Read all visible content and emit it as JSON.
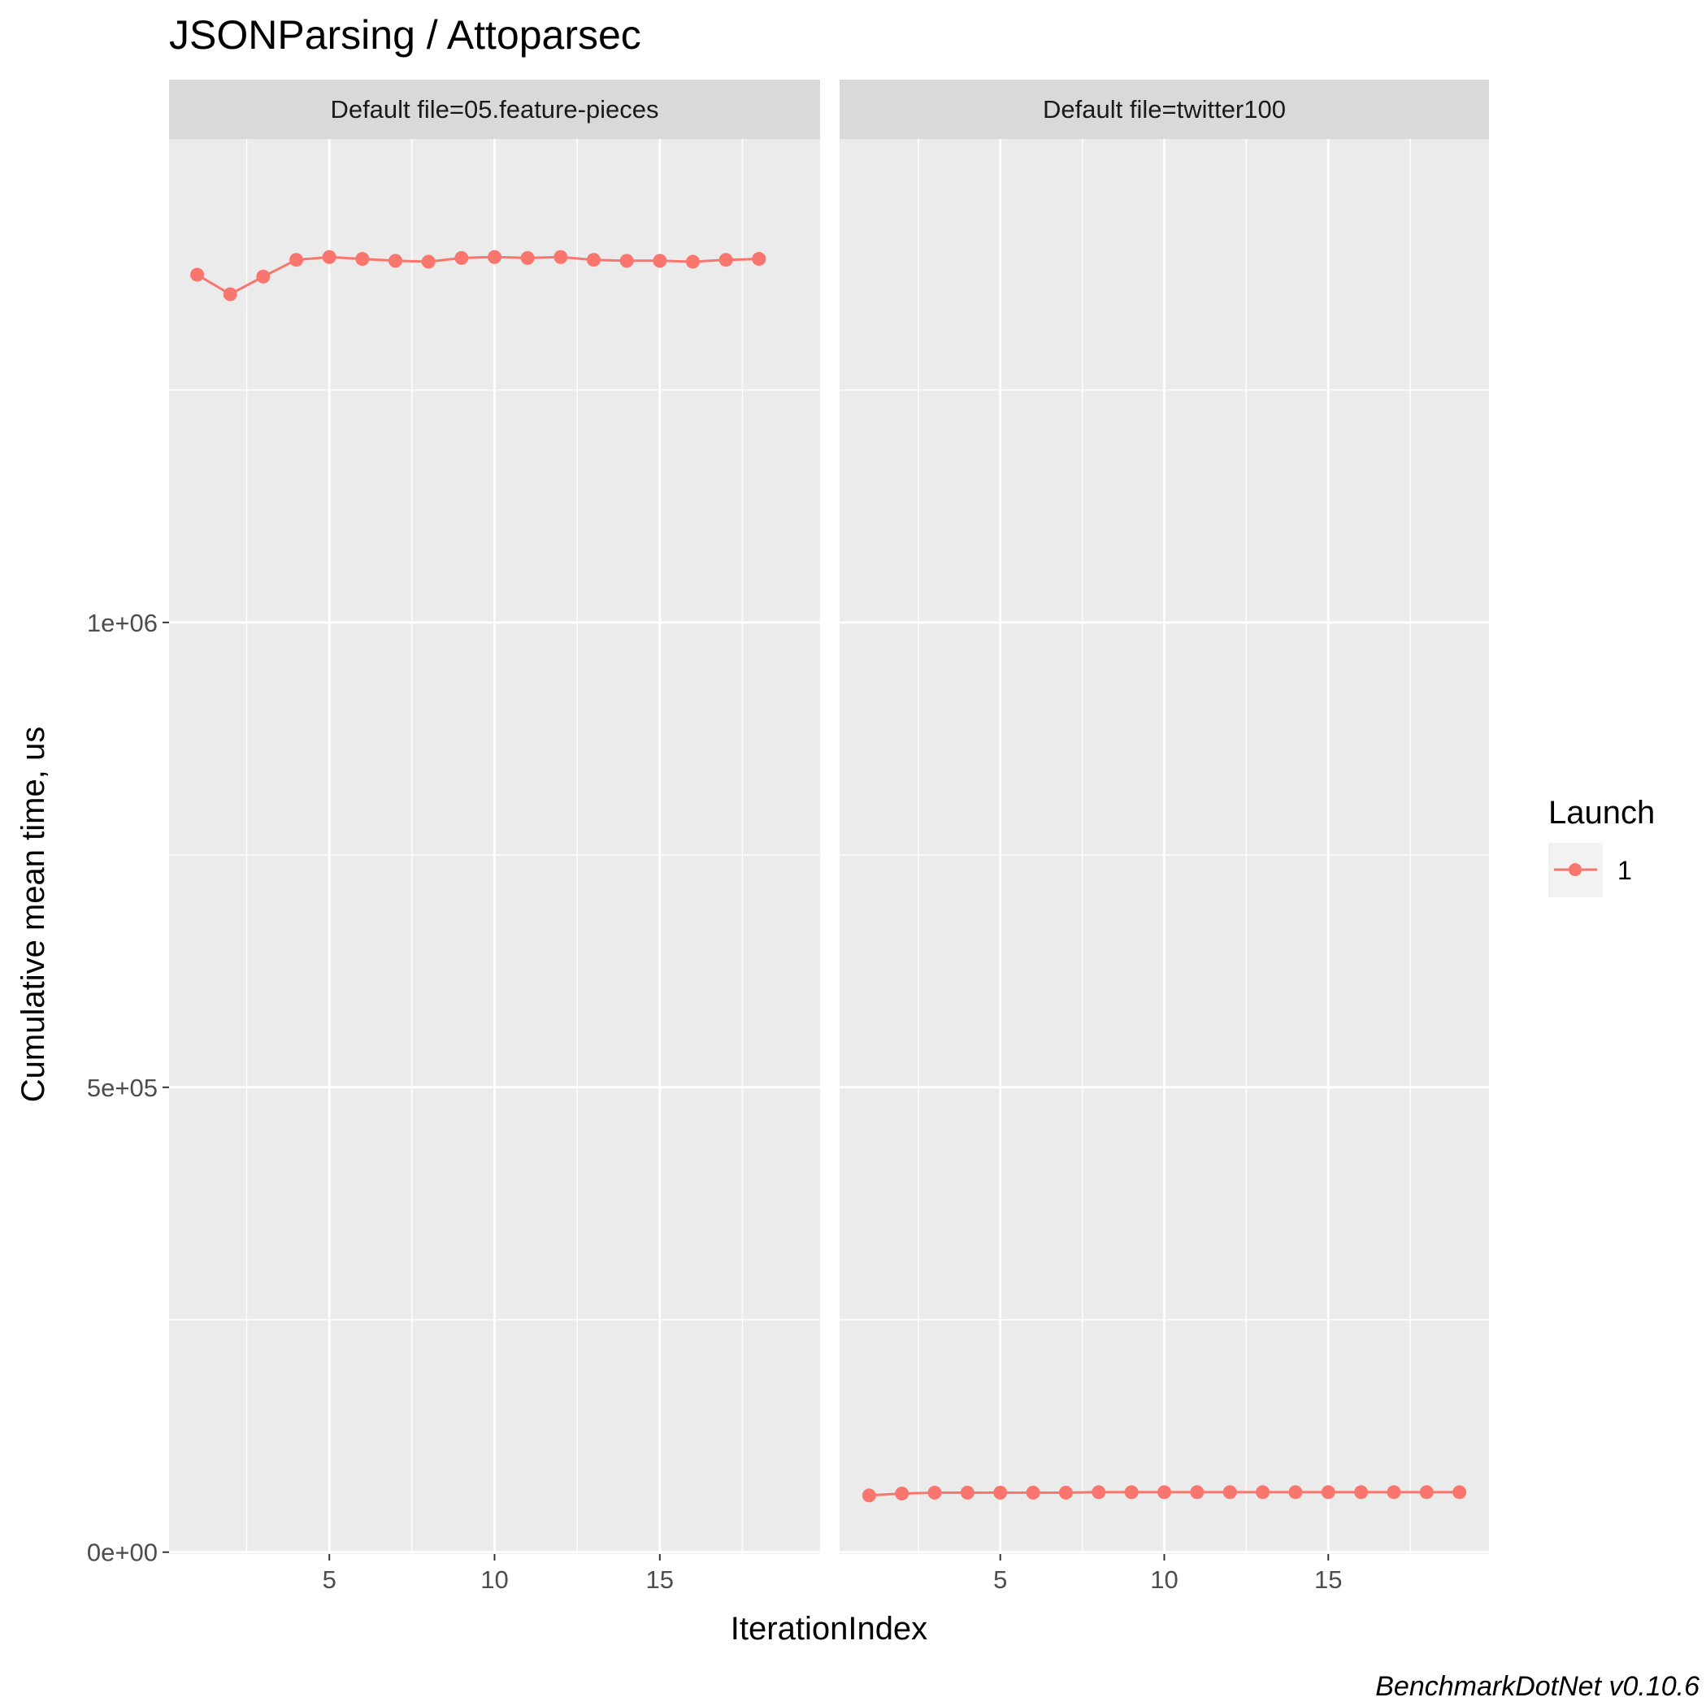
{
  "chart_data": {
    "type": "line",
    "title": "JSONParsing / Attoparsec",
    "xlabel": "IterationIndex",
    "ylabel": "Cumulative mean time, us",
    "caption": "BenchmarkDotNet v0.10.6",
    "ylim": [
      -2000,
      1520000
    ],
    "yticks": [
      0,
      500000,
      1000000
    ],
    "ytick_labels": [
      "0e+00",
      "5e+05",
      "1e+06"
    ],
    "xticks": [
      5,
      10,
      15
    ],
    "xtick_labels": [
      "5",
      "10",
      "15"
    ],
    "grid": true,
    "legend": {
      "title": "Launch",
      "position": "right",
      "entries": [
        {
          "label": "1",
          "color": "#F8766D"
        }
      ]
    },
    "panels": [
      {
        "strip": "Default file=05.feature-pieces",
        "xlim": [
          0.15,
          19.85
        ],
        "series": [
          {
            "name": "1",
            "color": "#F8766D",
            "x": [
              1,
              2,
              3,
              4,
              5,
              6,
              7,
              8,
              9,
              10,
              11,
              12,
              13,
              14,
              15,
              16,
              17,
              18
            ],
            "y": [
              1374000,
              1353000,
              1372000,
              1390000,
              1393000,
              1391000,
              1389000,
              1388000,
              1392000,
              1393000,
              1392000,
              1393000,
              1390000,
              1389000,
              1389000,
              1388000,
              1390000,
              1391000
            ]
          }
        ]
      },
      {
        "strip": "Default file=twitter100",
        "xlim": [
          0.1,
          19.9
        ],
        "series": [
          {
            "name": "1",
            "color": "#F8766D",
            "x": [
              1,
              2,
              3,
              4,
              5,
              6,
              7,
              8,
              9,
              10,
              11,
              12,
              13,
              14,
              15,
              16,
              17,
              18,
              19
            ],
            "y": [
              61000,
              63000,
              64000,
              64000,
              64000,
              64000,
              64000,
              64500,
              64500,
              64500,
              64500,
              64500,
              64500,
              64500,
              64500,
              64500,
              64500,
              64500,
              64500
            ]
          }
        ]
      }
    ]
  }
}
